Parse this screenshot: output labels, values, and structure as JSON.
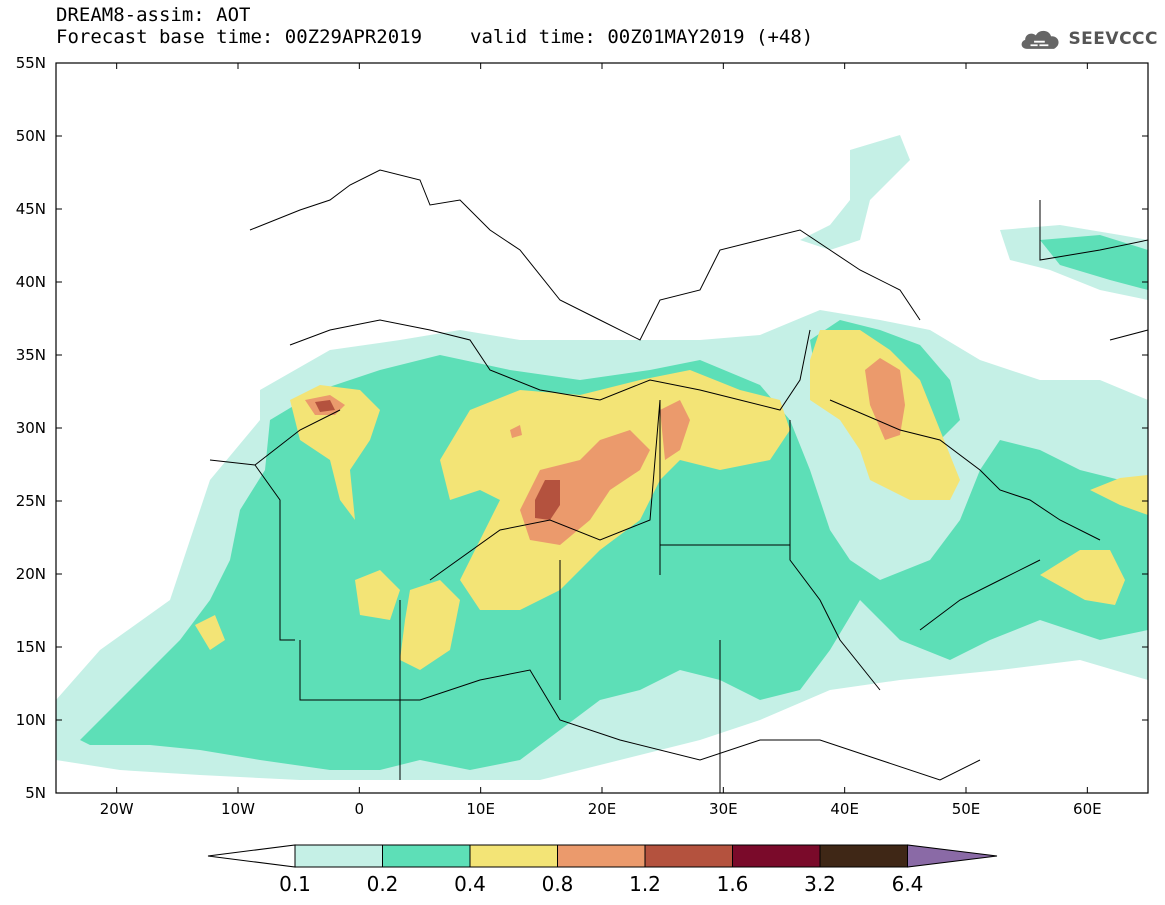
{
  "header": {
    "title_line1": "DREAM8-assim: AOT",
    "base_time": "Forecast base time: 00Z29APR2019",
    "valid_time": "valid time: 00Z01MAY2019 (+48)",
    "logo_text": "SEEVCCC",
    "logo_icon": "cloud-icon"
  },
  "map": {
    "lat_labels": [
      "55N",
      "50N",
      "45N",
      "40N",
      "35N",
      "30N",
      "25N",
      "20N",
      "15N",
      "10N",
      "5N"
    ],
    "lon_labels": [
      "20W",
      "10W",
      "0",
      "10E",
      "20E",
      "30E",
      "40E",
      "50E",
      "60E"
    ],
    "lon_range": [
      -25,
      65
    ],
    "lat_range": [
      5,
      55
    ]
  },
  "colorbar": {
    "levels": [
      "0.1",
      "0.2",
      "0.4",
      "0.8",
      "1.2",
      "1.6",
      "3.2",
      "6.4"
    ],
    "colors": [
      "#ffffff",
      "#c5f0e6",
      "#5ddfb7",
      "#f3e476",
      "#eb9a6c",
      "#b4523e",
      "#7a0a2a",
      "#3f2716",
      "#8a6aa6"
    ]
  },
  "legend": {
    "aot_colors": {
      "0.1-0.2": "#c5f0e6",
      "0.2-0.4": "#5ddfb7",
      "0.4-0.8": "#f3e476",
      "0.8-1.2": "#eb9a6c",
      "1.2-1.6": "#b4523e"
    }
  }
}
